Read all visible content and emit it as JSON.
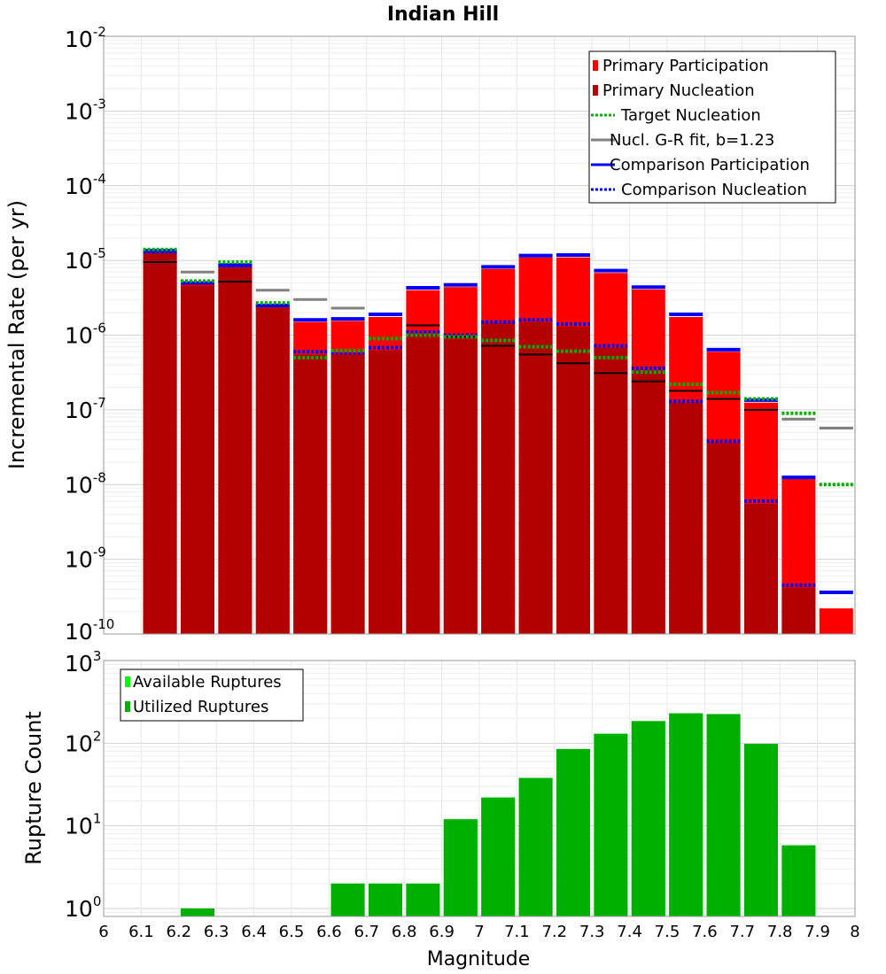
{
  "chart_data": [
    {
      "type": "bar",
      "title": "Indian Hill",
      "xlabel": "Magnitude",
      "ylabel": "Incremental Rate (per yr)",
      "yscale": "log",
      "ylim": [
        1e-10,
        0.01
      ],
      "xlim": [
        6,
        8
      ],
      "x_ticks": [
        "6",
        "6.1",
        "6.2",
        "6.3",
        "6.4",
        "6.5",
        "6.6",
        "6.7",
        "6.8",
        "6.9",
        "7",
        "7.1",
        "7.2",
        "7.3",
        "7.4",
        "7.5",
        "7.6",
        "7.7",
        "7.8",
        "7.9",
        "8"
      ],
      "y_ticks": [
        {
          "base": "10",
          "exp": "-2"
        },
        {
          "base": "10",
          "exp": "-3"
        },
        {
          "base": "10",
          "exp": "-4"
        },
        {
          "base": "10",
          "exp": "-5"
        },
        {
          "base": "10",
          "exp": "-6"
        },
        {
          "base": "10",
          "exp": "-7"
        },
        {
          "base": "10",
          "exp": "-8"
        },
        {
          "base": "10",
          "exp": "-9"
        },
        {
          "base": "10",
          "exp": "-10"
        }
      ],
      "grid": true,
      "legend_position": "top-right",
      "colors": {
        "primary_participation": "#ff0000",
        "primary_nucleation": "#b30000",
        "target_nucleation": "#00b000",
        "gr_fit": "#808080",
        "comparison_participation": "#0000ff",
        "comparison_nucleation": "#0000ff",
        "black_marker": "#000000"
      },
      "legend": [
        {
          "key": "primary_participation",
          "label": "Primary Participation",
          "style": "bar"
        },
        {
          "key": "primary_nucleation",
          "label": "Primary Nucleation",
          "style": "bar"
        },
        {
          "key": "target_nucleation",
          "label": "Target Nucleation",
          "style": "dotted"
        },
        {
          "key": "gr_fit",
          "label": "Nucl. G-R fit, b=1.23",
          "style": "solid"
        },
        {
          "key": "comparison_participation",
          "label": "Comparison Participation",
          "style": "solid"
        },
        {
          "key": "comparison_nucleation",
          "label": "Comparison Nucleation",
          "style": "dotted"
        }
      ],
      "bin_centers": [
        6.15,
        6.25,
        6.35,
        6.45,
        6.55,
        6.65,
        6.75,
        6.85,
        6.95,
        7.05,
        7.15,
        7.25,
        7.35,
        7.45,
        7.55,
        7.65,
        7.75,
        7.85,
        7.95
      ],
      "series": [
        {
          "key": "primary_participation",
          "values": [
            1.3e-05,
            4.8e-06,
            8.3e-06,
            2.4e-06,
            1.5e-06,
            1.55e-06,
            1.75e-06,
            4e-06,
            4.4e-06,
            7.7e-06,
            1.1e-05,
            1.1e-05,
            6.8e-06,
            4.1e-06,
            1.75e-06,
            6e-07,
            1.25e-07,
            1.2e-08,
            2.2e-10
          ]
        },
        {
          "key": "primary_nucleation",
          "values": [
            1.25e-05,
            4.6e-06,
            8.1e-06,
            2.35e-06,
            5.5e-07,
            5.5e-07,
            6.3e-07,
            1.05e-06,
            9.5e-07,
            1.45e-06,
            1.5e-06,
            1.3e-06,
            6.8e-07,
            3.4e-07,
            1.25e-07,
            3.6e-08,
            5.5e-09,
            4.2e-10,
            null
          ]
        },
        {
          "key": "comparison_participation",
          "values": [
            1.35e-05,
            5e-06,
            8.7e-06,
            2.5e-06,
            1.6e-06,
            1.65e-06,
            1.9e-06,
            4.3e-06,
            4.7e-06,
            8.2e-06,
            1.16e-05,
            1.18e-05,
            7.3e-06,
            4.4e-06,
            1.9e-06,
            6.4e-07,
            1.35e-07,
            1.25e-08,
            3.6e-10
          ]
        },
        {
          "key": "comparison_nucleation",
          "values": [
            1.3e-05,
            5e-06,
            8.5e-06,
            2.5e-06,
            6e-07,
            5.8e-07,
            6.8e-07,
            1.1e-06,
            1e-06,
            1.5e-06,
            1.6e-06,
            1.4e-06,
            7.2e-07,
            3.6e-07,
            1.3e-07,
            3.8e-08,
            6e-09,
            4.5e-10,
            null
          ]
        },
        {
          "key": "target_nucleation",
          "values": [
            1.4e-05,
            5.3e-06,
            9.5e-06,
            2.7e-06,
            5e-07,
            6.2e-07,
            9e-07,
            1e-06,
            9.5e-07,
            8.5e-07,
            7e-07,
            6.1e-07,
            5e-07,
            3.2e-07,
            2.2e-07,
            1.7e-07,
            1.4e-07,
            9e-08,
            1e-08
          ]
        },
        {
          "key": "gr_fit",
          "values": [
            null,
            7e-06,
            null,
            4e-06,
            3e-06,
            2.3e-06,
            null,
            null,
            null,
            null,
            null,
            null,
            null,
            null,
            null,
            null,
            null,
            7.5e-08,
            5.7e-08
          ]
        },
        {
          "key": "black_marker",
          "values": [
            9.5e-06,
            null,
            5.2e-06,
            null,
            null,
            null,
            null,
            1.35e-06,
            9.5e-07,
            7.2e-07,
            5.5e-07,
            4.2e-07,
            3.1e-07,
            2.4e-07,
            1.8e-07,
            1.4e-07,
            1e-07,
            null,
            null
          ]
        }
      ]
    },
    {
      "type": "bar",
      "xlabel": "Magnitude",
      "ylabel": "Rupture Count",
      "yscale": "log",
      "ylim": [
        0.8,
        1000
      ],
      "xlim": [
        6,
        8
      ],
      "y_ticks": [
        {
          "base": "10",
          "exp": "3"
        },
        {
          "base": "10",
          "exp": "2"
        },
        {
          "base": "10",
          "exp": "1"
        },
        {
          "base": "10",
          "exp": "0"
        }
      ],
      "grid": true,
      "legend_position": "top-left",
      "colors": {
        "available": "#00ff00",
        "utilized": "#00b000"
      },
      "legend": [
        {
          "key": "available",
          "label": "Available Ruptures"
        },
        {
          "key": "utilized",
          "label": "Utilized Ruptures"
        }
      ],
      "bin_centers": [
        6.25,
        6.65,
        6.75,
        6.85,
        6.95,
        7.05,
        7.15,
        7.25,
        7.35,
        7.45,
        7.55,
        7.65,
        7.75,
        7.85
      ],
      "series": [
        {
          "key": "available",
          "values": [
            1,
            2,
            2,
            2,
            12,
            22,
            38,
            85,
            130,
            185,
            230,
            225,
            98,
            5.8
          ]
        },
        {
          "key": "utilized",
          "values": [
            1,
            2,
            2,
            2,
            12,
            22,
            38,
            85,
            130,
            185,
            230,
            225,
            98,
            5.8
          ]
        }
      ]
    }
  ]
}
